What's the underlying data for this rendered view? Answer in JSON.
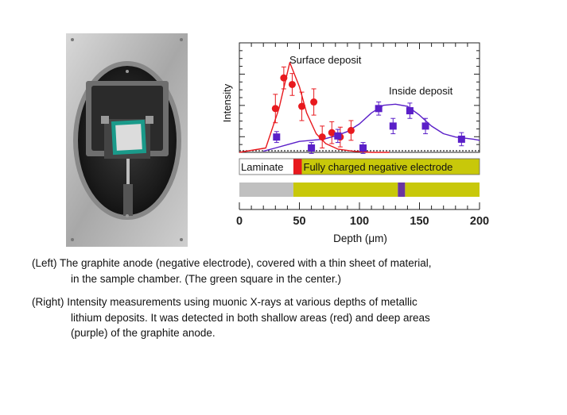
{
  "chart_data": {
    "type": "scatter",
    "xlabel": "Depth (μm)",
    "ylabel": "Intensity",
    "xlim": [
      0,
      200
    ],
    "xticks": [
      "0",
      "50",
      "100",
      "150",
      "200"
    ],
    "series": [
      {
        "name": "Surface deposit",
        "color": "#e8191e",
        "x": [
          30,
          37,
          44,
          52,
          62,
          69,
          77,
          84,
          93
        ],
        "y": [
          0.4,
          0.68,
          0.62,
          0.42,
          0.46,
          0.14,
          0.18,
          0.14,
          0.2
        ],
        "err": [
          0.13,
          0.1,
          0.1,
          0.13,
          0.12,
          0.1,
          0.1,
          0.09,
          0.09
        ],
        "fit": {
          "x": [
            0,
            22,
            33,
            42,
            50,
            56,
            64,
            72,
            82,
            95,
            110,
            125
          ],
          "y": [
            0,
            0.04,
            0.4,
            0.82,
            0.6,
            0.36,
            0.17,
            0.08,
            0.03,
            0.01,
            0,
            0
          ]
        }
      },
      {
        "name": "Inside deposit",
        "color": "#5a1fc8",
        "x": [
          31,
          60,
          82,
          103,
          116,
          128,
          142,
          155,
          185
        ],
        "y": [
          0.14,
          0.04,
          0.15,
          0.04,
          0.4,
          0.24,
          0.38,
          0.24,
          0.12
        ],
        "err": [
          0.05,
          0.05,
          0.06,
          0.05,
          0.06,
          0.07,
          0.07,
          0.07,
          0.06
        ],
        "fit": {
          "x": [
            20,
            30,
            40,
            50,
            60,
            70,
            80,
            90,
            100,
            110,
            120,
            130,
            140,
            150,
            160,
            170,
            180,
            195,
            200
          ],
          "y": [
            0.01,
            0.04,
            0.07,
            0.1,
            0.11,
            0.12,
            0.15,
            0.19,
            0.26,
            0.36,
            0.43,
            0.44,
            0.42,
            0.34,
            0.24,
            0.17,
            0.14,
            0.12,
            0.11
          ]
        }
      }
    ],
    "bar1": {
      "segments": [
        {
          "label": "Laminate",
          "from": 0,
          "to": 45,
          "color": "#ffffff"
        },
        {
          "label": "",
          "from": 45,
          "to": 52,
          "color": "#e8191e"
        },
        {
          "label": "Fully charged negative electrode",
          "from": 52,
          "to": 200,
          "color": "#c8c80a"
        }
      ]
    },
    "bar2": {
      "segments": [
        {
          "from": 0,
          "to": 45,
          "color": "#c0c0c0"
        },
        {
          "from": 45,
          "to": 132,
          "color": "#c8c80a"
        },
        {
          "from": 132,
          "to": 138,
          "color": "#6a35a0"
        },
        {
          "from": 138,
          "to": 200,
          "color": "#c8c80a"
        }
      ]
    }
  },
  "captions": {
    "left_1": "(Left) The graphite anode (negative electrode), covered with a thin sheet of material,",
    "left_2": "in the sample chamber. (The green square in the center.)",
    "right_1": "(Right) Intensity measurements using muonic X-rays at various depths of metallic",
    "right_2": "lithium deposits. It was detected in both shallow areas (red) and deep areas",
    "right_3": "(purple) of the graphite anode."
  }
}
